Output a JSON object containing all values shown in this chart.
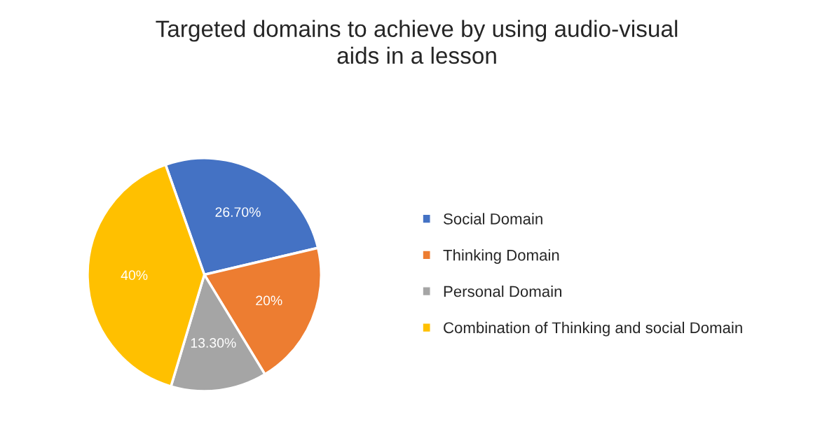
{
  "chart_data": {
    "type": "pie",
    "title": "Targeted domains to achieve by using audio-visual\naids in a lesson",
    "categories": [
      "Social Domain",
      "Thinking Domain",
      "Personal Domain",
      "Combination of Thinking and social Domain"
    ],
    "values": [
      26.7,
      20,
      13.3,
      40
    ],
    "colors": [
      "#4472c4",
      "#ed7d31",
      "#a5a5a5",
      "#ffc000"
    ],
    "value_labels": [
      "26.70%",
      "20%",
      "13.30%",
      "40%"
    ],
    "legend": "right"
  }
}
